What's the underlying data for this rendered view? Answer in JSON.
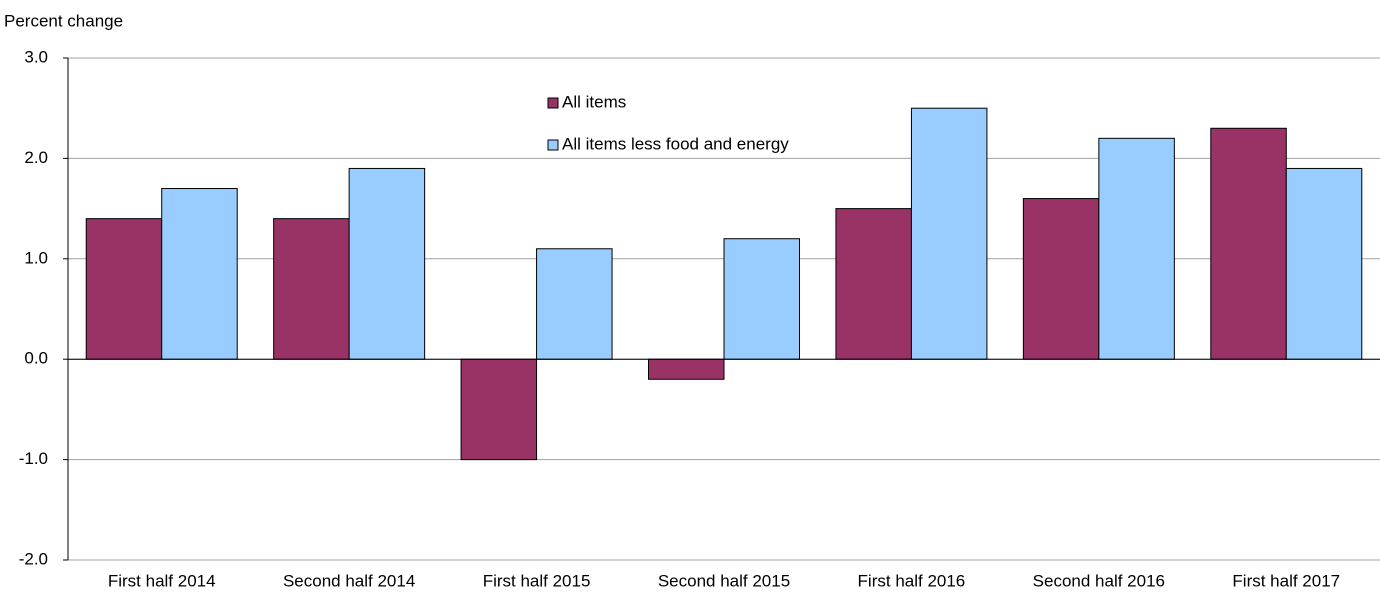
{
  "chart_data": {
    "type": "bar",
    "y_axis_label": "Percent change",
    "categories": [
      "First half 2014",
      "Second half 2014",
      "First half 2015",
      "Second half 2015",
      "First half 2016",
      "Second half 2016",
      "First half 2017"
    ],
    "series": [
      {
        "name": "All items",
        "color": "#993366",
        "values": [
          1.4,
          1.4,
          -1.0,
          -0.2,
          1.5,
          1.6,
          2.3
        ]
      },
      {
        "name": "All items less food and energy",
        "color": "#99ccff",
        "values": [
          1.7,
          1.9,
          1.1,
          1.2,
          2.5,
          2.2,
          1.9
        ]
      }
    ],
    "ylim": [
      -2,
      3
    ],
    "yticks": [
      {
        "value": -2,
        "label": "-2.0"
      },
      {
        "value": -1,
        "label": "-1.0"
      },
      {
        "value": 0,
        "label": "0.0"
      },
      {
        "value": 1,
        "label": "1.0"
      },
      {
        "value": 2,
        "label": "2.0"
      },
      {
        "value": 3,
        "label": "3.0"
      }
    ],
    "grid": true
  }
}
